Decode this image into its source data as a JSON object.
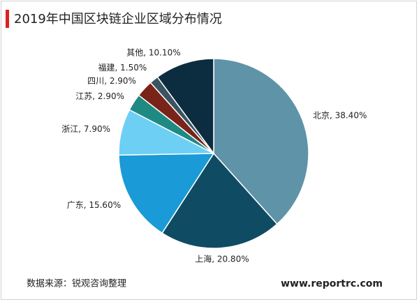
{
  "chart_data": {
    "type": "pie",
    "title": "2019年中国区块链企业区域分布情况",
    "categories": [
      "北京",
      "上海",
      "广东",
      "浙江",
      "江苏",
      "四川",
      "福建",
      "其他"
    ],
    "values": [
      38.4,
      20.8,
      15.6,
      7.9,
      2.9,
      2.9,
      1.5,
      10.1
    ],
    "value_labels": [
      "38.40%",
      "20.80%",
      "15.60%",
      "7.90%",
      "2.90%",
      "2.90%",
      "1.50%",
      "10.10%"
    ],
    "label_separator": ", ",
    "colors": [
      "#5f93a8",
      "#0f4c64",
      "#1a9ad6",
      "#6ecff5",
      "#1f8a82",
      "#7a2318",
      "#3a5562",
      "#0c2d3f"
    ],
    "source": "数据来源：锐观咨询整理",
    "watermark": "www.reportrc.com"
  }
}
